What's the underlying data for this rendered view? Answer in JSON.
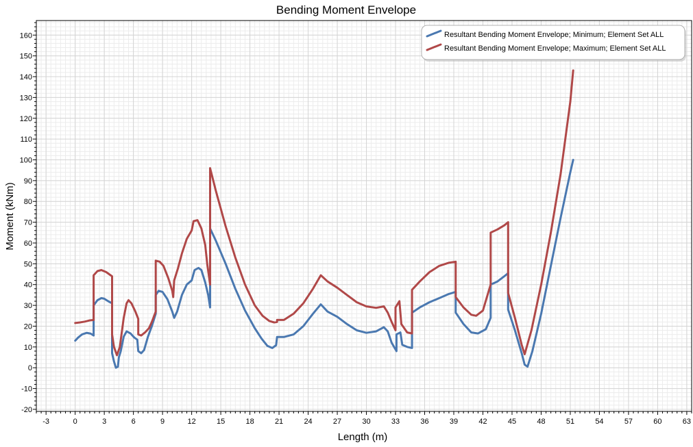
{
  "chart_data": {
    "type": "line",
    "title": "Bending Moment Envelope",
    "xlabel": "Length (m)",
    "ylabel": "Moment (kNm)",
    "xlim": [
      -4.0,
      63.5
    ],
    "ylim": [
      -21,
      167
    ],
    "x_ticks": [
      -3,
      0,
      3,
      6,
      9,
      12,
      15,
      18,
      21,
      24,
      27,
      30,
      33,
      36,
      39,
      42,
      45,
      48,
      51,
      54,
      57,
      60,
      63
    ],
    "y_ticks": [
      -20,
      -10,
      0,
      10,
      20,
      30,
      40,
      50,
      60,
      70,
      80,
      90,
      100,
      110,
      120,
      130,
      140,
      150,
      160
    ],
    "grid": true,
    "legend_position": "top-right",
    "series": [
      {
        "name": "Resultant Bending Moment Envelope; Minimum; Element Set ALL",
        "color": "#4a78b0",
        "points": [
          [
            0.0,
            13.0
          ],
          [
            0.3,
            14.5
          ],
          [
            0.7,
            16.0
          ],
          [
            1.2,
            16.8
          ],
          [
            1.6,
            16.4
          ],
          [
            1.9,
            15.5
          ],
          [
            1.9,
            30.0
          ],
          [
            2.3,
            32.5
          ],
          [
            2.7,
            33.5
          ],
          [
            3.0,
            33.2
          ],
          [
            3.4,
            32.0
          ],
          [
            3.8,
            31.0
          ],
          [
            3.8,
            7.0
          ],
          [
            4.0,
            3.0
          ],
          [
            4.2,
            0.0
          ],
          [
            4.4,
            0.5
          ],
          [
            4.5,
            5.0
          ],
          [
            4.7,
            8.0
          ],
          [
            5.0,
            15.0
          ],
          [
            5.3,
            17.5
          ],
          [
            5.7,
            16.5
          ],
          [
            6.1,
            14.5
          ],
          [
            6.4,
            13.5
          ],
          [
            6.5,
            8.0
          ],
          [
            6.8,
            7.0
          ],
          [
            7.1,
            8.5
          ],
          [
            7.5,
            15.0
          ],
          [
            7.9,
            20.0
          ],
          [
            8.3,
            26.0
          ],
          [
            8.3,
            35.0
          ],
          [
            8.6,
            37.0
          ],
          [
            9.0,
            36.5
          ],
          [
            9.5,
            33.0
          ],
          [
            10.0,
            27.0
          ],
          [
            10.2,
            24.0
          ],
          [
            10.5,
            27.0
          ],
          [
            11.0,
            35.0
          ],
          [
            11.5,
            40.0
          ],
          [
            12.0,
            42.0
          ],
          [
            12.3,
            47.0
          ],
          [
            12.7,
            48.0
          ],
          [
            13.0,
            47.0
          ],
          [
            13.4,
            41.0
          ],
          [
            13.7,
            35.0
          ],
          [
            13.9,
            29.0
          ],
          [
            13.9,
            67.0
          ],
          [
            14.5,
            61.0
          ],
          [
            15.5,
            50.0
          ],
          [
            16.5,
            38.0
          ],
          [
            17.5,
            27.5
          ],
          [
            18.5,
            19.0
          ],
          [
            19.2,
            14.0
          ],
          [
            19.8,
            10.5
          ],
          [
            20.3,
            9.5
          ],
          [
            20.7,
            10.8
          ],
          [
            20.8,
            14.8
          ],
          [
            21.5,
            14.8
          ],
          [
            22.5,
            16.0
          ],
          [
            23.5,
            20.0
          ],
          [
            24.5,
            26.0
          ],
          [
            25.3,
            30.5
          ],
          [
            26.0,
            27.0
          ],
          [
            27.0,
            24.5
          ],
          [
            28.0,
            21.0
          ],
          [
            29.0,
            18.0
          ],
          [
            30.0,
            16.8
          ],
          [
            31.0,
            17.5
          ],
          [
            31.8,
            19.5
          ],
          [
            32.2,
            17.5
          ],
          [
            32.6,
            12.0
          ],
          [
            33.1,
            8.0
          ],
          [
            33.1,
            16.0
          ],
          [
            33.5,
            17.0
          ],
          [
            33.7,
            11.0
          ],
          [
            34.2,
            10.0
          ],
          [
            34.7,
            9.5
          ],
          [
            34.7,
            26.5
          ],
          [
            35.5,
            29.0
          ],
          [
            36.5,
            31.5
          ],
          [
            37.5,
            33.5
          ],
          [
            38.5,
            35.5
          ],
          [
            39.2,
            36.5
          ],
          [
            39.2,
            26.5
          ],
          [
            40.0,
            21.0
          ],
          [
            40.8,
            17.0
          ],
          [
            41.5,
            16.5
          ],
          [
            42.3,
            18.5
          ],
          [
            42.8,
            24.0
          ],
          [
            42.8,
            40.0
          ],
          [
            43.5,
            41.5
          ],
          [
            44.2,
            44.0
          ],
          [
            44.6,
            45.5
          ],
          [
            44.6,
            28.0
          ],
          [
            45.3,
            18.0
          ],
          [
            46.0,
            7.0
          ],
          [
            46.3,
            1.5
          ],
          [
            46.6,
            0.5
          ],
          [
            47.1,
            8.0
          ],
          [
            48.0,
            26.0
          ],
          [
            49.0,
            49.0
          ],
          [
            50.0,
            72.0
          ],
          [
            51.0,
            94.0
          ],
          [
            51.3,
            100.0
          ]
        ]
      },
      {
        "name": "Resultant Bending Moment Envelope; Maximum; Element Set ALL",
        "color": "#b04848",
        "points": [
          [
            0.0,
            21.5
          ],
          [
            0.5,
            21.8
          ],
          [
            1.0,
            22.2
          ],
          [
            1.5,
            22.8
          ],
          [
            1.9,
            23.0
          ],
          [
            1.9,
            44.5
          ],
          [
            2.3,
            46.5
          ],
          [
            2.7,
            47.0
          ],
          [
            3.2,
            46.0
          ],
          [
            3.8,
            44.0
          ],
          [
            3.8,
            16.0
          ],
          [
            4.0,
            10.0
          ],
          [
            4.3,
            6.0
          ],
          [
            4.6,
            10.0
          ],
          [
            5.0,
            24.0
          ],
          [
            5.3,
            31.0
          ],
          [
            5.5,
            32.5
          ],
          [
            5.8,
            31.0
          ],
          [
            6.2,
            27.0
          ],
          [
            6.5,
            23.5
          ],
          [
            6.5,
            16.0
          ],
          [
            6.8,
            15.5
          ],
          [
            7.2,
            17.0
          ],
          [
            7.6,
            19.0
          ],
          [
            7.9,
            22.0
          ],
          [
            8.3,
            27.0
          ],
          [
            8.3,
            51.5
          ],
          [
            8.7,
            51.0
          ],
          [
            9.1,
            49.0
          ],
          [
            9.6,
            43.0
          ],
          [
            10.0,
            37.0
          ],
          [
            10.1,
            34.0
          ],
          [
            10.2,
            42.0
          ],
          [
            10.6,
            48.0
          ],
          [
            11.0,
            55.0
          ],
          [
            11.5,
            62.0
          ],
          [
            12.0,
            66.0
          ],
          [
            12.2,
            70.5
          ],
          [
            12.6,
            71.0
          ],
          [
            13.0,
            67.0
          ],
          [
            13.4,
            59.0
          ],
          [
            13.6,
            50.0
          ],
          [
            13.9,
            40.0
          ],
          [
            13.9,
            96.0
          ],
          [
            14.5,
            85.0
          ],
          [
            15.5,
            68.0
          ],
          [
            16.5,
            53.0
          ],
          [
            17.5,
            40.0
          ],
          [
            18.5,
            30.0
          ],
          [
            19.3,
            25.0
          ],
          [
            20.0,
            22.5
          ],
          [
            20.5,
            21.8
          ],
          [
            20.8,
            22.0
          ],
          [
            20.8,
            23.0
          ],
          [
            21.5,
            23.0
          ],
          [
            22.5,
            26.0
          ],
          [
            23.5,
            31.0
          ],
          [
            24.5,
            38.0
          ],
          [
            25.3,
            44.5
          ],
          [
            26.0,
            41.5
          ],
          [
            27.0,
            38.5
          ],
          [
            28.0,
            35.0
          ],
          [
            29.0,
            31.5
          ],
          [
            30.0,
            29.5
          ],
          [
            31.0,
            28.8
          ],
          [
            31.8,
            29.5
          ],
          [
            32.2,
            26.5
          ],
          [
            32.6,
            22.0
          ],
          [
            33.0,
            18.0
          ],
          [
            33.0,
            29.0
          ],
          [
            33.4,
            32.0
          ],
          [
            33.6,
            21.0
          ],
          [
            34.2,
            17.0
          ],
          [
            34.7,
            16.5
          ],
          [
            34.7,
            37.5
          ],
          [
            35.5,
            41.5
          ],
          [
            36.5,
            46.0
          ],
          [
            37.5,
            49.0
          ],
          [
            38.5,
            50.5
          ],
          [
            39.2,
            51.0
          ],
          [
            39.2,
            34.0
          ],
          [
            40.0,
            29.0
          ],
          [
            40.8,
            25.5
          ],
          [
            41.3,
            25.0
          ],
          [
            42.0,
            27.5
          ],
          [
            42.8,
            40.0
          ],
          [
            42.8,
            65.0
          ],
          [
            43.5,
            66.5
          ],
          [
            44.2,
            68.5
          ],
          [
            44.6,
            70.0
          ],
          [
            44.6,
            36.0
          ],
          [
            45.3,
            24.0
          ],
          [
            46.0,
            11.0
          ],
          [
            46.3,
            6.5
          ],
          [
            47.0,
            18.0
          ],
          [
            48.0,
            40.0
          ],
          [
            49.0,
            65.0
          ],
          [
            50.0,
            93.0
          ],
          [
            51.0,
            128.0
          ],
          [
            51.3,
            143.0
          ]
        ]
      }
    ]
  }
}
